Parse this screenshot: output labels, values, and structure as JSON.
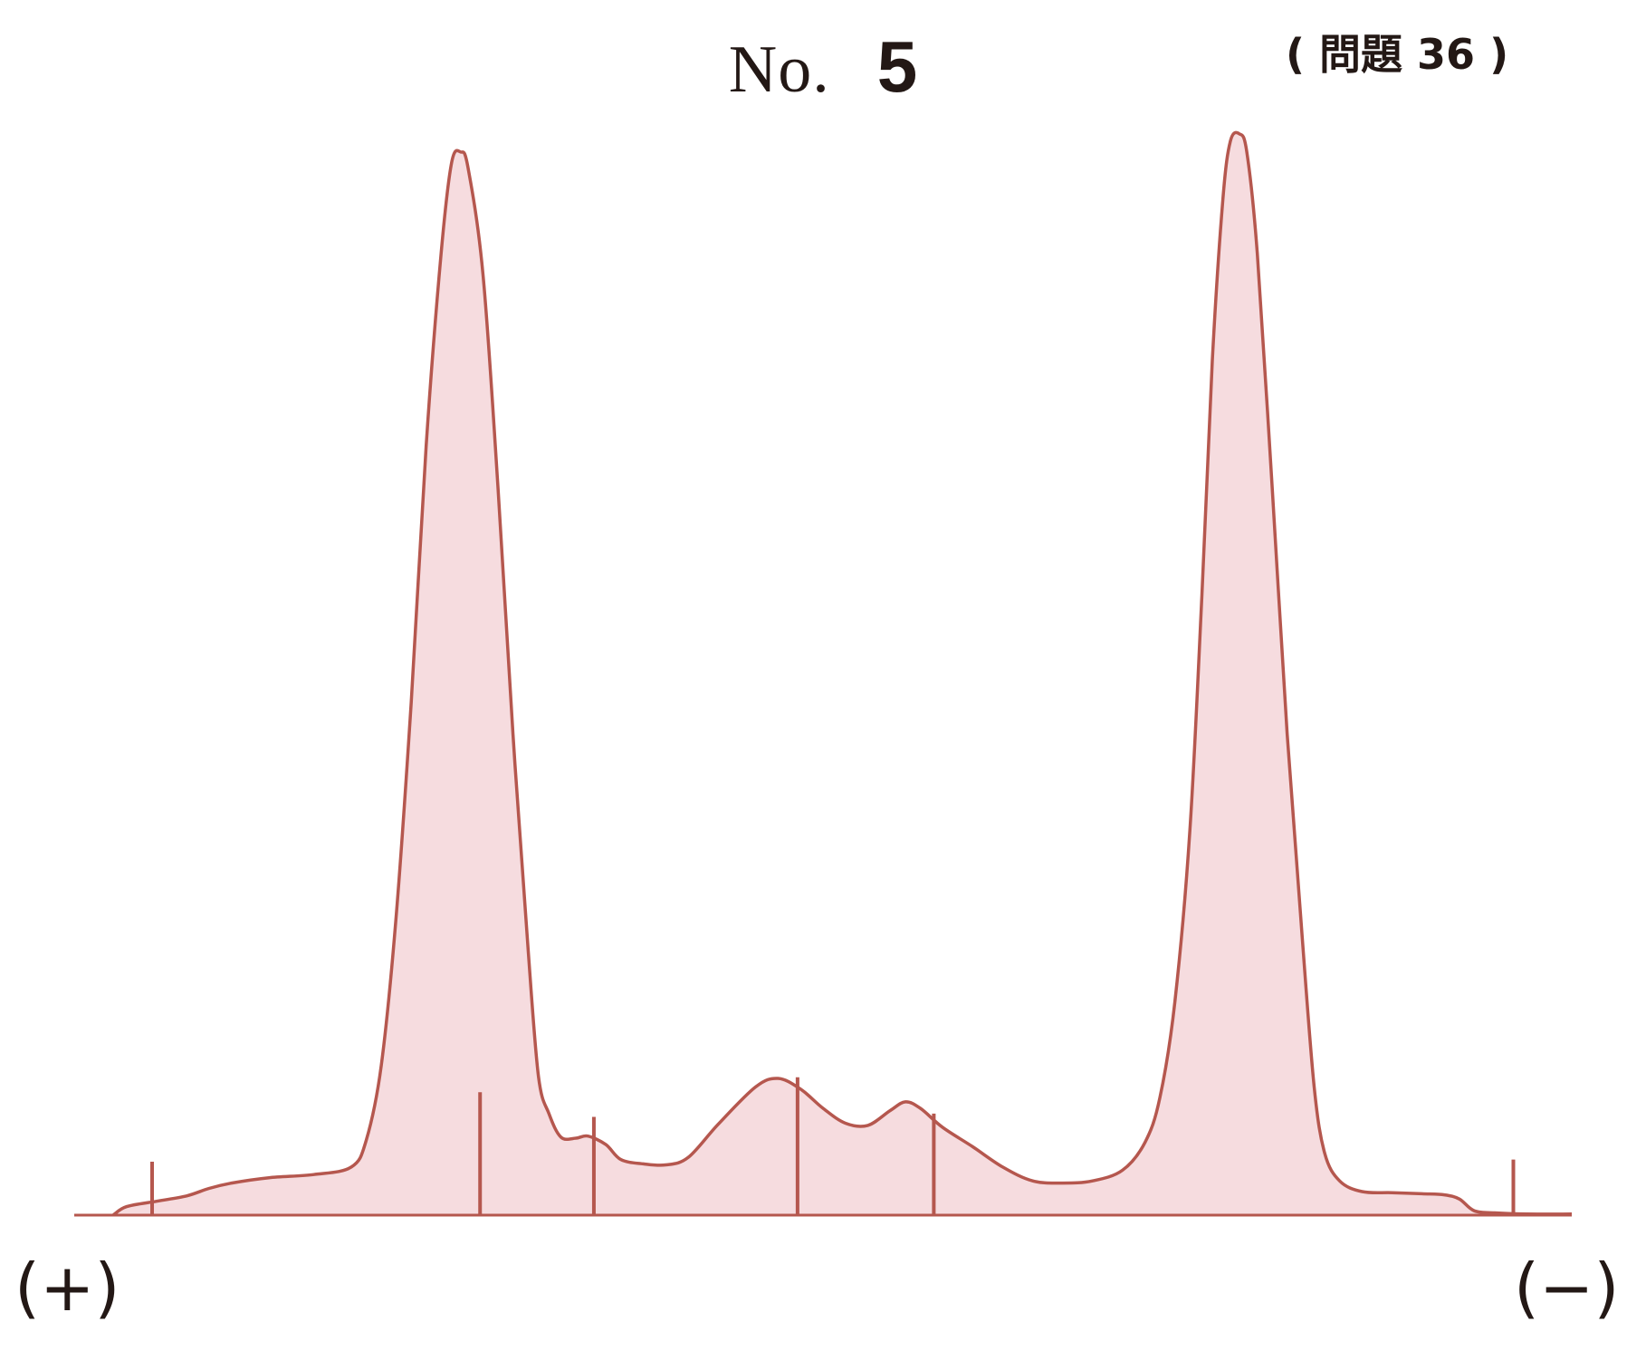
{
  "header": {
    "title_prefix": "No.",
    "title_number": "5",
    "problem_ref": "( 問題 36 )"
  },
  "axis": {
    "left_label": "(+)",
    "right_label": "(−)"
  },
  "colors": {
    "curve": "#b5574e",
    "fill": "#f6dcdf",
    "baseline": "#b5574e",
    "text": "#231815"
  },
  "chart_data": {
    "type": "area",
    "title": "No. 5",
    "xlabel": "",
    "ylabel": "",
    "x_range": [
      0,
      100
    ],
    "y_range": [
      0,
      100
    ],
    "grid": false,
    "legend": "none",
    "series": [
      {
        "values": [
          [
            2.6,
            0
          ],
          [
            3.5,
            0.8
          ],
          [
            5.5,
            1.3
          ],
          [
            7.5,
            1.8
          ],
          [
            9,
            2.5
          ],
          [
            10.5,
            3.0
          ],
          [
            13,
            3.5
          ],
          [
            16,
            3.8
          ],
          [
            18.5,
            4.5
          ],
          [
            19.5,
            7
          ],
          [
            20.5,
            14
          ],
          [
            21.5,
            28
          ],
          [
            22.5,
            48
          ],
          [
            23.5,
            72
          ],
          [
            24.5,
            90
          ],
          [
            25.2,
            98.5
          ],
          [
            25.8,
            99.5
          ],
          [
            26.3,
            98
          ],
          [
            27.3,
            88
          ],
          [
            28.3,
            68
          ],
          [
            29.3,
            45
          ],
          [
            30.3,
            25
          ],
          [
            31,
            13
          ],
          [
            31.7,
            9.5
          ],
          [
            32.5,
            7.3
          ],
          [
            33.5,
            7.2
          ],
          [
            34.3,
            7.4
          ],
          [
            35.5,
            6.6
          ],
          [
            36.5,
            5.2
          ],
          [
            38,
            4.8
          ],
          [
            39.5,
            4.7
          ],
          [
            41,
            5.4
          ],
          [
            43,
            8.5
          ],
          [
            45.5,
            12.0
          ],
          [
            47,
            12.8
          ],
          [
            48.5,
            11.8
          ],
          [
            50,
            10.0
          ],
          [
            51.5,
            8.6
          ],
          [
            53,
            8.4
          ],
          [
            54.5,
            9.8
          ],
          [
            55.5,
            10.6
          ],
          [
            56.5,
            10.0
          ],
          [
            58,
            8.2
          ],
          [
            60,
            6.4
          ],
          [
            62,
            4.5
          ],
          [
            64,
            3.2
          ],
          [
            66,
            3.0
          ],
          [
            68,
            3.2
          ],
          [
            70,
            4.2
          ],
          [
            71.5,
            6.8
          ],
          [
            72.5,
            11
          ],
          [
            73.5,
            20
          ],
          [
            74.5,
            36
          ],
          [
            75.3,
            58
          ],
          [
            76,
            80
          ],
          [
            76.7,
            95
          ],
          [
            77.2,
            100.5
          ],
          [
            77.8,
            101.2
          ],
          [
            78.3,
            99.5
          ],
          [
            79,
            90
          ],
          [
            80,
            68
          ],
          [
            81,
            45
          ],
          [
            82,
            26
          ],
          [
            82.8,
            12
          ],
          [
            83.5,
            5.8
          ],
          [
            84.5,
            3.2
          ],
          [
            86,
            2.2
          ],
          [
            88,
            2.1
          ],
          [
            90,
            2.0
          ],
          [
            91.5,
            1.9
          ],
          [
            92.5,
            1.5
          ],
          [
            93.5,
            0.4
          ],
          [
            95,
            0.2
          ],
          [
            97,
            0.1
          ],
          [
            100,
            0.1
          ]
        ]
      }
    ],
    "fraction_dividers_x": [
      5.2,
      27.1,
      34.7,
      48.3,
      57.4,
      96.1
    ],
    "divider_heights": [
      5.0,
      11.5,
      9.2,
      12.9,
      9.5,
      5.2
    ]
  }
}
